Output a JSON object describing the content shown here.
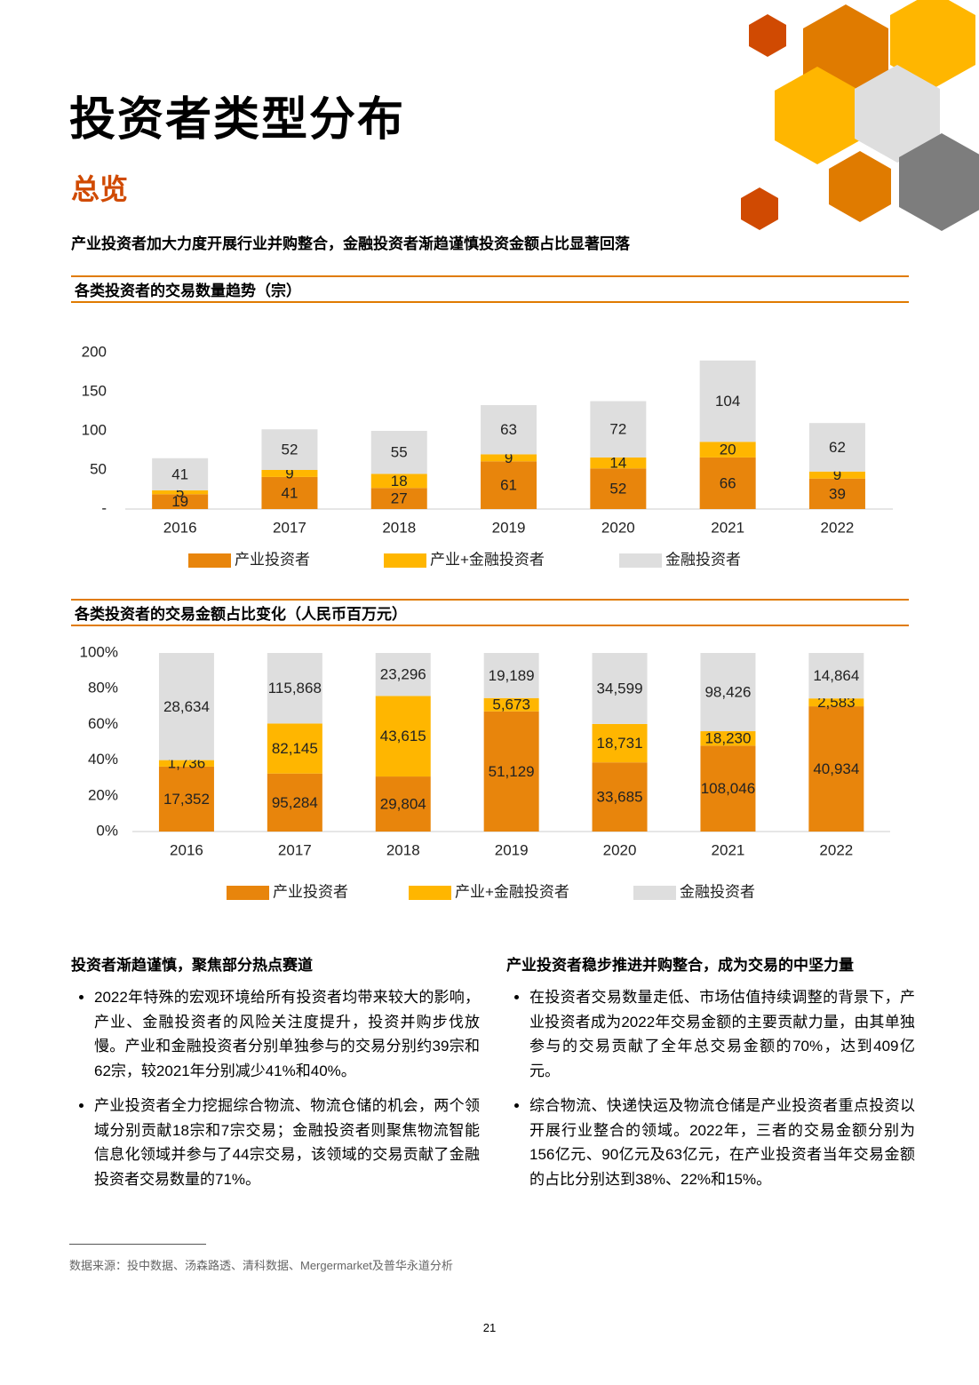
{
  "header": {
    "title": "投资者类型分布",
    "subtitle": "总览",
    "headline": "产业投资者加大力度开展行业并购整合，金融投资者渐趋谨慎投资金额占比显著回落"
  },
  "chart_data": [
    {
      "type": "bar",
      "stacked": "absolute",
      "title": "各类投资者的交易数量趋势（宗）",
      "categories": [
        "2016",
        "2017",
        "2018",
        "2019",
        "2020",
        "2021",
        "2022"
      ],
      "series": [
        {
          "name": "产业投资者",
          "color": "#e8850c",
          "values": [
            19,
            41,
            27,
            61,
            52,
            66,
            39
          ]
        },
        {
          "name": "产业+金融投资者",
          "color": "#ffb600",
          "values": [
            5,
            9,
            18,
            9,
            14,
            20,
            9
          ]
        },
        {
          "name": "金融投资者",
          "color": "#dedede",
          "values": [
            41,
            52,
            55,
            63,
            72,
            104,
            62
          ]
        }
      ],
      "ylim": [
        0,
        200
      ],
      "yticks": [
        {
          "value": 0,
          "label": "-"
        },
        50,
        100,
        150,
        200
      ],
      "grid": false
    },
    {
      "type": "bar",
      "stacked": "percent",
      "title": "各类投资者的交易金额占比变化（人民币百万元）",
      "categories": [
        "2016",
        "2017",
        "2018",
        "2019",
        "2020",
        "2021",
        "2022"
      ],
      "series": [
        {
          "name": "产业投资者",
          "color": "#e8850c",
          "values": [
            17352,
            95284,
            29804,
            51129,
            33685,
            108046,
            40934
          ],
          "value_labels": [
            "17,352",
            "95,284",
            "29,804",
            "51,129",
            "33,685",
            "108,046",
            "40,934"
          ]
        },
        {
          "name": "产业+金融投资者",
          "color": "#ffb600",
          "values": [
            1736,
            82145,
            43615,
            5673,
            18731,
            18230,
            2583
          ],
          "value_labels": [
            "1,736",
            "82,145",
            "43,615",
            "5,673",
            "18,731",
            "18,230",
            "2,583"
          ]
        },
        {
          "name": "金融投资者",
          "color": "#dedede",
          "values": [
            28634,
            115868,
            23296,
            19189,
            34599,
            98426,
            14864
          ],
          "value_labels": [
            "28,634",
            "115,868",
            "23,296",
            "19,189",
            "34,599",
            "98,426",
            "14,864"
          ]
        }
      ],
      "ylim": [
        0,
        100
      ],
      "yticks": [
        {
          "value": 0,
          "label": "0%"
        },
        {
          "value": 20,
          "label": "20%"
        },
        {
          "value": 40,
          "label": "40%"
        },
        {
          "value": 60,
          "label": "60%"
        },
        {
          "value": 80,
          "label": "80%"
        },
        {
          "value": 100,
          "label": "100%"
        }
      ],
      "grid": false
    }
  ],
  "columns": [
    {
      "heading": "投资者渐趋谨慎，聚焦部分热点赛道",
      "bullets": [
        "2022年特殊的宏观环境给所有投资者均带来较大的影响，产业、金融投资者的风险关注度提升，投资并购步伐放慢。产业和金融投资者分别单独参与的交易分别约39宗和62宗，较2021年分别减少41%和40%。",
        "产业投资者全力挖掘综合物流、物流仓储的机会，两个领域分别贡献18宗和7宗交易；金融投资者则聚焦物流智能信息化领域并参与了44宗交易，该领域的交易贡献了金融投资者交易数量的71%。"
      ]
    },
    {
      "heading": "产业投资者稳步推进并购整合，成为交易的中坚力量",
      "bullets": [
        "在投资者交易数量走低、市场估值持续调整的背景下，产业投资者成为2022年交易金额的主要贡献力量，由其单独参与的交易贡献了全年总交易金额的70%，达到409亿元。",
        "综合物流、快递快运及物流仓储是产业投资者重点投资以开展行业整合的领域。2022年，三者的交易金额分别为156亿元、90亿元及63亿元，在产业投资者当年交易金额的占比分别达到38%、22%和15%。"
      ]
    }
  ],
  "footer": {
    "source": "数据来源：投中数据、汤森路透、清科数据、Mergermarket及普华永道分析",
    "page": "21"
  }
}
